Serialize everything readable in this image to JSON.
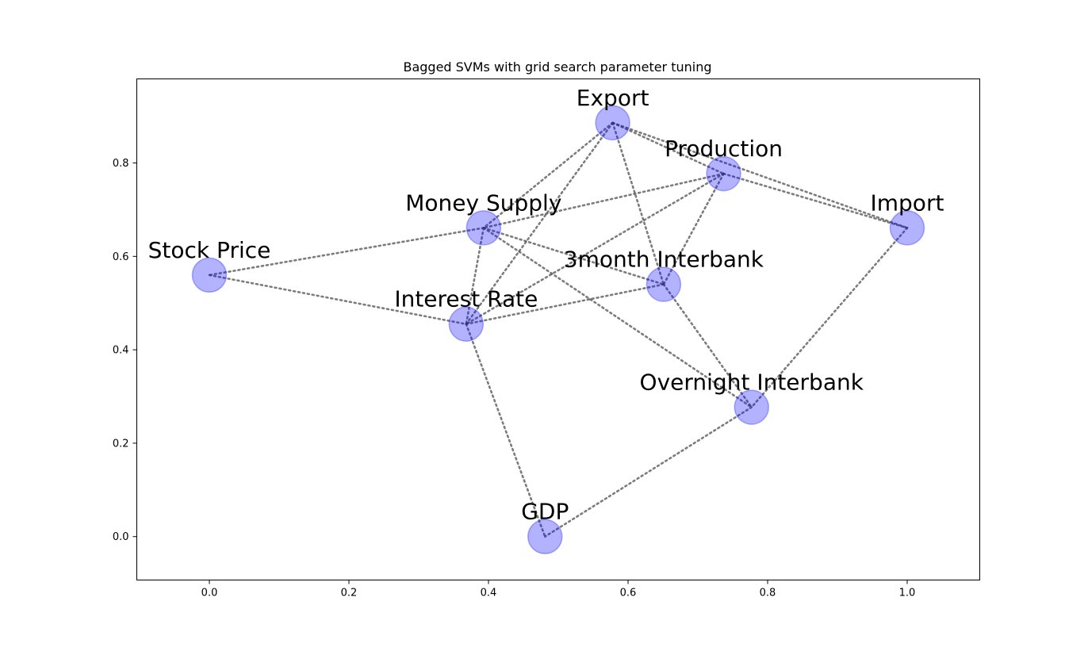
{
  "chart_data": {
    "type": "network",
    "title": "Bagged SVMs with grid search parameter tuning",
    "xlim": [
      -0.104,
      1.104
    ],
    "ylim": [
      -0.093,
      0.98
    ],
    "x_ticks": [
      {
        "value": 0.0,
        "label": "0.0"
      },
      {
        "value": 0.2,
        "label": "0.2"
      },
      {
        "value": 0.4,
        "label": "0.4"
      },
      {
        "value": 0.6,
        "label": "0.6"
      },
      {
        "value": 0.8,
        "label": "0.8"
      },
      {
        "value": 1.0,
        "label": "1.0"
      }
    ],
    "y_ticks": [
      {
        "value": 0.0,
        "label": "0.0"
      },
      {
        "value": 0.2,
        "label": "0.2"
      },
      {
        "value": 0.4,
        "label": "0.4"
      },
      {
        "value": 0.6,
        "label": "0.6"
      },
      {
        "value": 0.8,
        "label": "0.8"
      }
    ],
    "nodes": [
      {
        "id": "export",
        "label": "Export",
        "x": 0.578,
        "y": 0.886
      },
      {
        "id": "production",
        "label": "Production",
        "x": 0.737,
        "y": 0.777
      },
      {
        "id": "import",
        "label": "Import",
        "x": 1.0,
        "y": 0.661
      },
      {
        "id": "money_supply",
        "label": "Money Supply",
        "x": 0.393,
        "y": 0.661
      },
      {
        "id": "stock_price",
        "label": "Stock Price",
        "x": 0.0,
        "y": 0.56
      },
      {
        "id": "3month_interbank",
        "label": "3month Interbank",
        "x": 0.651,
        "y": 0.54
      },
      {
        "id": "interest_rate",
        "label": "Interest Rate",
        "x": 0.368,
        "y": 0.455
      },
      {
        "id": "overnight_interbank",
        "label": "Overnight Interbank",
        "x": 0.777,
        "y": 0.277
      },
      {
        "id": "gdp",
        "label": "GDP",
        "x": 0.481,
        "y": 0.0
      }
    ],
    "edges": [
      [
        "export",
        "production"
      ],
      [
        "export",
        "import"
      ],
      [
        "export",
        "money_supply"
      ],
      [
        "export",
        "3month_interbank"
      ],
      [
        "export",
        "interest_rate"
      ],
      [
        "production",
        "import"
      ],
      [
        "production",
        "money_supply"
      ],
      [
        "production",
        "3month_interbank"
      ],
      [
        "production",
        "interest_rate"
      ],
      [
        "money_supply",
        "stock_price"
      ],
      [
        "money_supply",
        "3month_interbank"
      ],
      [
        "money_supply",
        "overnight_interbank"
      ],
      [
        "money_supply",
        "interest_rate"
      ],
      [
        "stock_price",
        "interest_rate"
      ],
      [
        "interest_rate",
        "3month_interbank"
      ],
      [
        "interest_rate",
        "gdp"
      ],
      [
        "3month_interbank",
        "overnight_interbank"
      ],
      [
        "import",
        "overnight_interbank"
      ],
      [
        "overnight_interbank",
        "gdp"
      ]
    ],
    "node_color": "#0000ff",
    "edge_color": "#444444"
  }
}
